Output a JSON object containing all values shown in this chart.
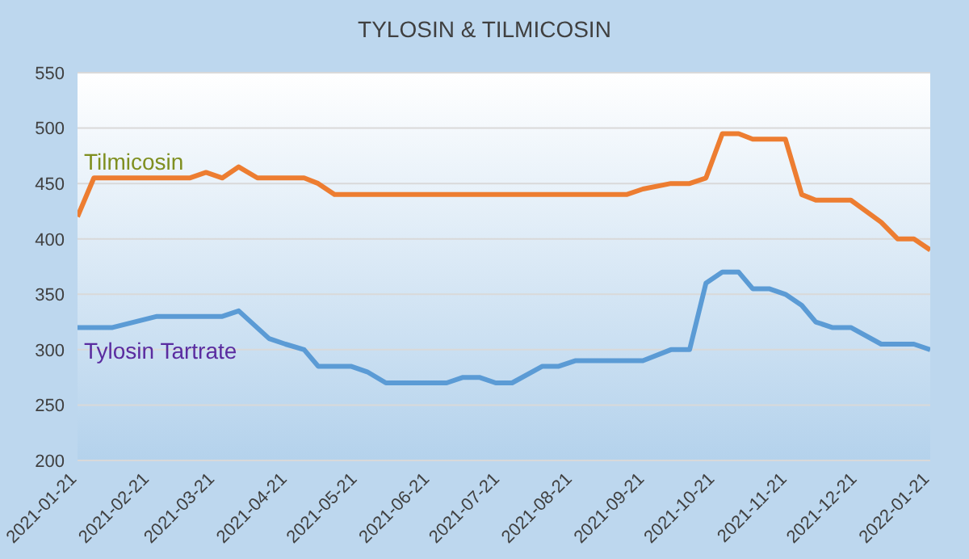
{
  "chart_data": {
    "type": "line",
    "title": "TYLOSIN & TILMICOSIN",
    "ylim": [
      200,
      550
    ],
    "yticks": [
      200,
      250,
      300,
      350,
      400,
      450,
      500,
      550
    ],
    "xlim": [
      "2021-01-21",
      "2022-01-21"
    ],
    "xticks": [
      "2021-01-21",
      "2021-02-21",
      "2021-03-21",
      "2021-04-21",
      "2021-05-21",
      "2021-06-21",
      "2021-07-21",
      "2021-08-21",
      "2021-09-21",
      "2021-10-21",
      "2021-11-21",
      "2021-12-21",
      "2022-01-21"
    ],
    "grid": "y",
    "marker": "none",
    "line_style": "solid",
    "series": [
      {
        "name": "Tilmicosin",
        "color": "#ed7d31",
        "x": [
          "2021-01-21",
          "2021-01-28",
          "2021-03-10",
          "2021-03-17",
          "2021-03-24",
          "2021-03-31",
          "2021-04-08",
          "2021-04-28",
          "2021-05-04",
          "2021-05-11",
          "2021-09-13",
          "2021-09-20",
          "2021-10-02",
          "2021-10-10",
          "2021-10-17",
          "2021-10-24",
          "2021-10-31",
          "2021-11-06",
          "2021-11-20",
          "2021-11-27",
          "2021-12-03",
          "2021-12-18",
          "2021-12-31",
          "2022-01-07",
          "2022-01-14",
          "2022-01-21"
        ],
        "values": [
          420,
          455,
          455,
          460,
          455,
          465,
          455,
          455,
          450,
          440,
          440,
          445,
          450,
          450,
          455,
          495,
          495,
          490,
          490,
          440,
          435,
          435,
          415,
          400,
          400,
          390
        ]
      },
      {
        "name": "Tylosin Tartrate",
        "color": "#5b9bd5",
        "x": [
          "2021-01-21",
          "2021-02-05",
          "2021-02-24",
          "2021-03-24",
          "2021-03-31",
          "2021-04-13",
          "2021-04-20",
          "2021-04-28",
          "2021-05-04",
          "2021-05-18",
          "2021-05-25",
          "2021-06-02",
          "2021-06-28",
          "2021-07-05",
          "2021-07-12",
          "2021-07-19",
          "2021-07-26",
          "2021-08-08",
          "2021-08-15",
          "2021-08-22",
          "2021-09-20",
          "2021-10-02",
          "2021-10-10",
          "2021-10-17",
          "2021-10-24",
          "2021-10-31",
          "2021-11-06",
          "2021-11-13",
          "2021-11-20",
          "2021-11-27",
          "2021-12-03",
          "2021-12-10",
          "2021-12-18",
          "2021-12-31",
          "2022-01-14",
          "2022-01-21"
        ],
        "values": [
          320,
          320,
          330,
          330,
          335,
          310,
          305,
          300,
          285,
          285,
          280,
          270,
          270,
          275,
          275,
          270,
          270,
          285,
          285,
          290,
          290,
          300,
          300,
          360,
          370,
          370,
          355,
          355,
          350,
          340,
          325,
          320,
          320,
          305,
          305,
          300
        ]
      }
    ]
  }
}
